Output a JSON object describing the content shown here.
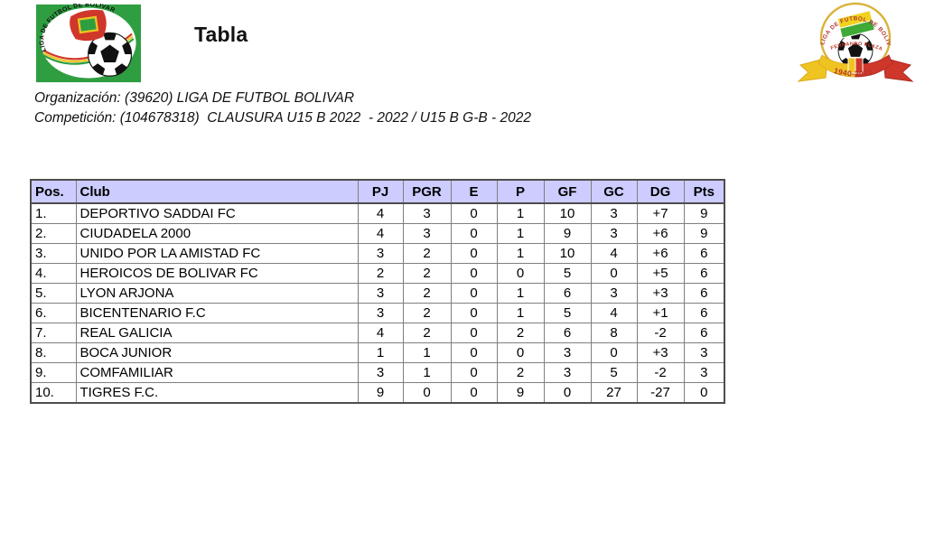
{
  "page": {
    "title": "Tabla"
  },
  "logos": {
    "left": {
      "arc_text": "LIGA DE FUTBOL DE BOLIVAR"
    },
    "right": {
      "arc_text": "LIGA DE FUTBOL DE BOLIVAR",
      "middle_text": "FERNANDO PLAZAS",
      "years_text": "1940-2022"
    }
  },
  "org": {
    "line1": "Organización: (39620) LIGA DE FUTBOL BOLIVAR",
    "line2": "Competición: (104678318)  CLAUSURA U15 B 2022  - 2022 / U15 B G-B - 2022"
  },
  "table": {
    "columns": [
      "Pos.",
      "Club",
      "PJ",
      "PGR",
      "E",
      "P",
      "GF",
      "GC",
      "DG",
      "Pts"
    ],
    "column_keys": [
      "pos",
      "club",
      "pj",
      "pgr",
      "e",
      "p",
      "gf",
      "gc",
      "dg",
      "pts"
    ],
    "rows": [
      [
        "1.",
        "DEPORTIVO SADDAI FC",
        "4",
        "3",
        "0",
        "1",
        "10",
        "3",
        "+7",
        "9"
      ],
      [
        "2.",
        "CIUDADELA 2000",
        "4",
        "3",
        "0",
        "1",
        "9",
        "3",
        "+6",
        "9"
      ],
      [
        "3.",
        "UNIDO POR LA AMISTAD FC",
        "3",
        "2",
        "0",
        "1",
        "10",
        "4",
        "+6",
        "6"
      ],
      [
        "4.",
        "HEROICOS DE BOLIVAR FC",
        "2",
        "2",
        "0",
        "0",
        "5",
        "0",
        "+5",
        "6"
      ],
      [
        "5.",
        "LYON ARJONA",
        "3",
        "2",
        "0",
        "1",
        "6",
        "3",
        "+3",
        "6"
      ],
      [
        "6.",
        "BICENTENARIO F.C",
        "3",
        "2",
        "0",
        "1",
        "5",
        "4",
        "+1",
        "6"
      ],
      [
        "7.",
        "REAL GALICIA",
        "4",
        "2",
        "0",
        "2",
        "6",
        "8",
        "-2",
        "6"
      ],
      [
        "8.",
        "BOCA JUNIOR",
        "1",
        "1",
        "0",
        "0",
        "3",
        "0",
        "+3",
        "3"
      ],
      [
        "9.",
        "COMFAMILIAR",
        "3",
        "1",
        "0",
        "2",
        "3",
        "5",
        "-2",
        "3"
      ],
      [
        "10.",
        "TIGRES F.C.",
        "9",
        "0",
        "0",
        "9",
        "0",
        "27",
        "-27",
        "0"
      ]
    ]
  },
  "colors": {
    "table_header_bg": "#CCCCFF",
    "table_border_dark": "#4D4D4D",
    "table_border_light": "#7F7F7F",
    "logo_green": "#2F9E41",
    "logo_red": "#D0372B",
    "logo_yellow": "#F0C420"
  }
}
